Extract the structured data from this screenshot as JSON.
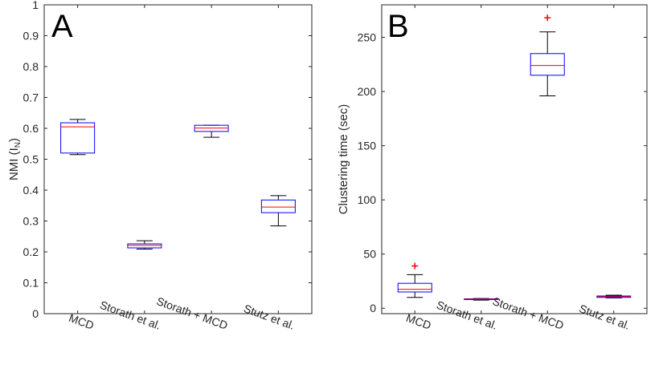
{
  "chart_data": [
    {
      "type": "box",
      "panel_label": "A",
      "ylabel": "NMI (I",
      "ylabel_subscript": "N",
      "ylabel_close": ")",
      "ylim": [
        0,
        1
      ],
      "yticks": [
        0,
        0.1,
        0.2,
        0.3,
        0.4,
        0.5,
        0.6,
        0.7,
        0.8,
        0.9,
        1
      ],
      "ytick_labels": [
        "0",
        "0.1",
        "0.2",
        "0.3",
        "0.4",
        "0.5",
        "0.6",
        "0.7",
        "0.8",
        "0.9",
        "1"
      ],
      "categories": [
        "MCD",
        "Storath et al.",
        "Storath + MCD",
        "Stutz et al."
      ],
      "grid": false,
      "boxes": [
        {
          "whisker_low": 0.515,
          "q1": 0.52,
          "median": 0.605,
          "q3": 0.618,
          "whisker_high": 0.629,
          "outliers": []
        },
        {
          "whisker_low": 0.209,
          "q1": 0.213,
          "median": 0.221,
          "q3": 0.226,
          "whisker_high": 0.236,
          "outliers": []
        },
        {
          "whisker_low": 0.571,
          "q1": 0.59,
          "median": 0.601,
          "q3": 0.61,
          "whisker_high": 0.61,
          "outliers": []
        },
        {
          "whisker_low": 0.284,
          "q1": 0.327,
          "median": 0.345,
          "q3": 0.368,
          "whisker_high": 0.382,
          "outliers": []
        }
      ]
    },
    {
      "type": "box",
      "panel_label": "B",
      "ylabel": "Clustering time (sec)",
      "ylim": [
        -5,
        280
      ],
      "yticks": [
        0,
        50,
        100,
        150,
        200,
        250
      ],
      "ytick_labels": [
        "0",
        "50",
        "100",
        "150",
        "200",
        "250"
      ],
      "categories": [
        "MCD",
        "Storath et al.",
        "Storath + MCD",
        "Stutz et al."
      ],
      "grid": false,
      "boxes": [
        {
          "whisker_low": 10,
          "q1": 15,
          "median": 17.5,
          "q3": 23,
          "whisker_high": 31,
          "outliers": [
            39
          ]
        },
        {
          "whisker_low": 7.5,
          "q1": 8,
          "median": 8.3,
          "q3": 8.7,
          "whisker_high": 9,
          "outliers": []
        },
        {
          "whisker_low": 196,
          "q1": 215,
          "median": 224,
          "q3": 235,
          "whisker_high": 255,
          "outliers": [
            268
          ]
        },
        {
          "whisker_low": 9.5,
          "q1": 10,
          "median": 10.6,
          "q3": 11.3,
          "whisker_high": 12,
          "outliers": []
        }
      ]
    }
  ],
  "colors": {
    "box": "#0000ff",
    "median": "#ff0000",
    "whisker": "#000000",
    "outlier": "#ff0000",
    "axis": "#262626"
  }
}
